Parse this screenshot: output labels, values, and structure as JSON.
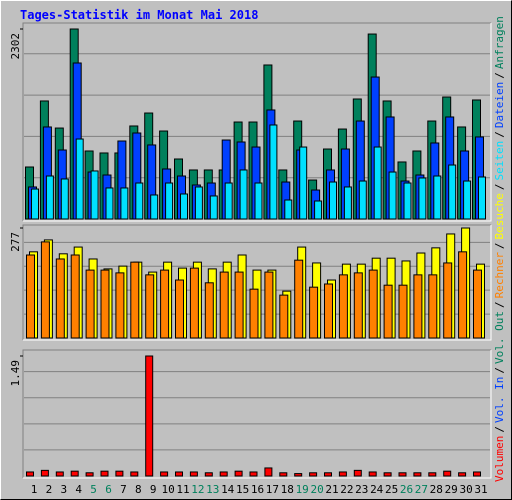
{
  "chart_data": [
    {
      "type": "bar",
      "title": "Tages-Statistik im Monat Mai 2018",
      "ylim": [
        0,
        2302
      ],
      "yticks": [
        2302
      ],
      "series": [
        {
          "name": "Anfragen",
          "color": "#00805c",
          "values": [
            630,
            1430,
            1102,
            2302,
            824,
            800,
            800,
            1127,
            1284,
            1066,
            727,
            594,
            594,
            594,
            1175,
            1175,
            1866,
            594,
            1187,
            472,
            848,
            1090,
            1454,
            2241,
            1430,
            691,
            824,
            1187,
            1478,
            1115,
            1442
          ]
        },
        {
          "name": "Dateien",
          "color": "#0040ff",
          "values": [
            388,
            1115,
            836,
            1890,
            569,
            533,
            945,
            1042,
            897,
            606,
            521,
            412,
            436,
            957,
            933,
            872,
            1321,
            448,
            836,
            351,
            594,
            848,
            1187,
            1720,
            1236,
            460,
            533,
            921,
            1236,
            824,
            994
          ]
        },
        {
          "name": "Seiten",
          "color": "#00e0ff",
          "values": [
            363,
            521,
            485,
            969,
            582,
            376,
            376,
            436,
            291,
            436,
            303,
            388,
            279,
            436,
            594,
            436,
            1139,
            230,
            872,
            218,
            448,
            388,
            460,
            872,
            569,
            436,
            497,
            521,
            654,
            460,
            509
          ]
        }
      ]
    },
    {
      "type": "bar",
      "ylim": [
        0,
        277
      ],
      "yticks": [
        277
      ],
      "series": [
        {
          "name": "Besuche",
          "color": "#ffff00",
          "values": [
            217,
            247,
            212,
            229,
            199,
            174,
            181,
            191,
            166,
            191,
            176,
            191,
            174,
            191,
            209,
            171,
            171,
            118,
            229,
            189,
            146,
            186,
            186,
            201,
            201,
            194,
            214,
            227,
            262,
            277,
            186
          ]
        },
        {
          "name": "Rechner",
          "color": "#ff8000",
          "values": [
            209,
            242,
            199,
            209,
            171,
            171,
            164,
            191,
            159,
            171,
            146,
            176,
            139,
            166,
            166,
            123,
            166,
            108,
            196,
            128,
            136,
            159,
            164,
            171,
            133,
            133,
            159,
            159,
            189,
            217,
            171
          ]
        }
      ]
    },
    {
      "type": "bar",
      "ylim": [
        0,
        1.49
      ],
      "yticks": [
        1.49
      ],
      "series": [
        {
          "name": "Volumen",
          "color": "#ff0000",
          "values": [
            0.05,
            0.07,
            0.05,
            0.06,
            0.04,
            0.06,
            0.06,
            0.05,
            1.49,
            0.05,
            0.05,
            0.05,
            0.04,
            0.05,
            0.06,
            0.05,
            0.1,
            0.04,
            0.03,
            0.04,
            0.04,
            0.05,
            0.07,
            0.05,
            0.04,
            0.04,
            0.04,
            0.04,
            0.06,
            0.04,
            0.05
          ]
        }
      ],
      "extra_legend": [
        {
          "name": "Vol. In",
          "color": "#0040ff"
        },
        {
          "name": "Vol. Out",
          "color": "#00805c"
        }
      ],
      "legend_separator": "/",
      "categories": [
        "1",
        "2",
        "3",
        "4",
        "5",
        "6",
        "7",
        "8",
        "9",
        "10",
        "11",
        "12",
        "13",
        "14",
        "15",
        "16",
        "17",
        "18",
        "19",
        "20",
        "21",
        "22",
        "23",
        "24",
        "25",
        "26",
        "27",
        "28",
        "29",
        "30",
        "31"
      ],
      "highlight_categories": [
        "5",
        "6",
        "12",
        "13",
        "19",
        "20",
        "26",
        "27"
      ],
      "highlight_color": "#00805c"
    }
  ]
}
